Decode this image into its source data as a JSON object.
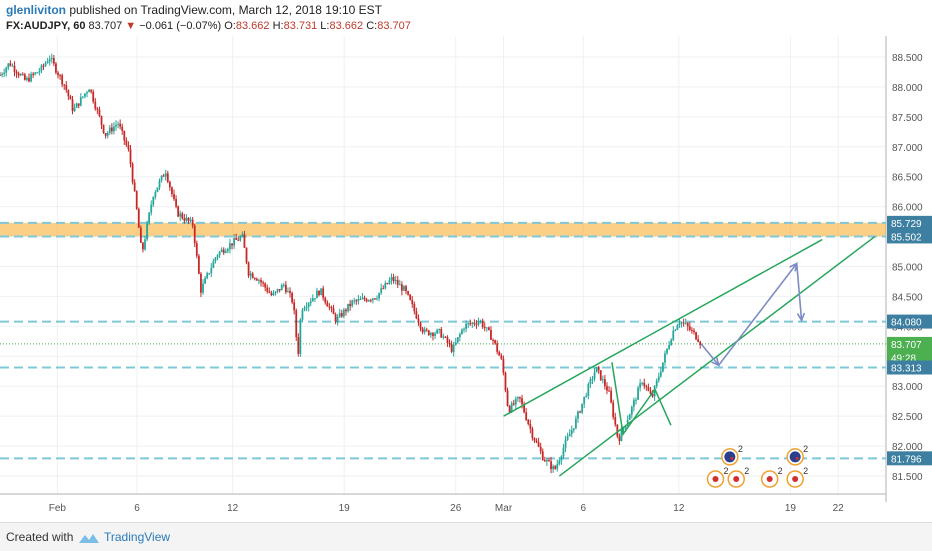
{
  "header": {
    "user": "glenliviton",
    "published": "published on TradingView.com, March 12, 2018 19:10 EST",
    "symbol": "FX:AUDJPY, 60",
    "last": "83.707",
    "arrow": "▼",
    "change": "−0.061 (−0.07%)",
    "o_label": "O:",
    "o": "83.662",
    "h_label": "H:",
    "h": "83.731",
    "l_label": "L:",
    "l": "83.662",
    "c_label": "C:",
    "c": "83.707"
  },
  "footer": {
    "created": "Created with",
    "brand": "TradingView"
  },
  "colors": {
    "support_line": "#7ec8d8",
    "zone": "#f9a825",
    "channel": "#26a65b",
    "arrow": "#7d8cc4",
    "candle_up": "#26a69a",
    "candle_down": "#c62828",
    "label_bg": "#3d7fa0",
    "last_price_bg": "#4caf50"
  },
  "chart_data": {
    "type": "line",
    "symbol": "FX:AUDJPY",
    "interval": "60",
    "y_ticks": [
      81.5,
      82.0,
      82.5,
      83.0,
      83.5,
      84.0,
      84.5,
      85.0,
      85.5,
      86.0,
      86.5,
      87.0,
      87.5,
      88.0,
      88.5
    ],
    "ylim": [
      81.2,
      88.85
    ],
    "x_ticks": [
      "Feb",
      "6",
      "12",
      "19",
      "26",
      "Mar",
      "6",
      "12",
      "19",
      "22"
    ],
    "x_tick_days": [
      0,
      5,
      11,
      18,
      25,
      28,
      33,
      39,
      46,
      49
    ],
    "xlim": [
      -3.6,
      52
    ],
    "price_path": [
      {
        "x": -3.6,
        "y": 88.2
      },
      {
        "x": -3.0,
        "y": 88.4
      },
      {
        "x": -2.0,
        "y": 88.1
      },
      {
        "x": -1.0,
        "y": 88.3
      },
      {
        "x": -0.5,
        "y": 88.5
      },
      {
        "x": 0.5,
        "y": 88.0
      },
      {
        "x": 1.0,
        "y": 87.6
      },
      {
        "x": 2.0,
        "y": 88.0
      },
      {
        "x": 3.0,
        "y": 87.2
      },
      {
        "x": 3.8,
        "y": 87.4
      },
      {
        "x": 4.5,
        "y": 86.9
      },
      {
        "x": 5.0,
        "y": 85.9
      },
      {
        "x": 5.3,
        "y": 85.2
      },
      {
        "x": 6.0,
        "y": 86.2
      },
      {
        "x": 6.8,
        "y": 86.6
      },
      {
        "x": 7.5,
        "y": 85.9
      },
      {
        "x": 8.5,
        "y": 85.7
      },
      {
        "x": 9.0,
        "y": 84.6
      },
      {
        "x": 10.0,
        "y": 85.2
      },
      {
        "x": 11.0,
        "y": 85.4
      },
      {
        "x": 11.6,
        "y": 85.5
      },
      {
        "x": 12.0,
        "y": 84.9
      },
      {
        "x": 12.6,
        "y": 84.8
      },
      {
        "x": 13.5,
        "y": 84.5
      },
      {
        "x": 14.2,
        "y": 84.7
      },
      {
        "x": 14.8,
        "y": 84.4
      },
      {
        "x": 15.1,
        "y": 83.5
      },
      {
        "x": 15.3,
        "y": 84.3
      },
      {
        "x": 16.5,
        "y": 84.6
      },
      {
        "x": 17.5,
        "y": 84.1
      },
      {
        "x": 18.5,
        "y": 84.4
      },
      {
        "x": 20.0,
        "y": 84.5
      },
      {
        "x": 21.0,
        "y": 84.8
      },
      {
        "x": 21.8,
        "y": 84.6
      },
      {
        "x": 22.5,
        "y": 84.2
      },
      {
        "x": 23.0,
        "y": 83.9
      },
      {
        "x": 24.0,
        "y": 83.9
      },
      {
        "x": 24.8,
        "y": 83.6
      },
      {
        "x": 25.5,
        "y": 84.0
      },
      {
        "x": 26.5,
        "y": 84.1
      },
      {
        "x": 27.3,
        "y": 83.8
      },
      {
        "x": 27.9,
        "y": 83.4
      },
      {
        "x": 28.3,
        "y": 82.6
      },
      {
        "x": 29.0,
        "y": 82.8
      },
      {
        "x": 29.8,
        "y": 82.2
      },
      {
        "x": 30.5,
        "y": 81.8
      },
      {
        "x": 31.2,
        "y": 81.6
      },
      {
        "x": 31.8,
        "y": 82.0
      },
      {
        "x": 32.5,
        "y": 82.4
      },
      {
        "x": 33.2,
        "y": 82.9
      },
      {
        "x": 33.8,
        "y": 83.3
      },
      {
        "x": 34.6,
        "y": 82.9
      },
      {
        "x": 35.2,
        "y": 82.1
      },
      {
        "x": 36.0,
        "y": 82.6
      },
      {
        "x": 36.7,
        "y": 83.1
      },
      {
        "x": 37.3,
        "y": 82.8
      },
      {
        "x": 38.0,
        "y": 83.4
      },
      {
        "x": 38.6,
        "y": 83.9
      },
      {
        "x": 39.0,
        "y": 84.1
      },
      {
        "x": 39.5,
        "y": 84.0
      },
      {
        "x": 40.2,
        "y": 83.8
      },
      {
        "x": 40.4,
        "y": 83.707
      }
    ],
    "support_levels": [
      85.729,
      85.502,
      84.08,
      83.313,
      81.796
    ],
    "resistance_zone": [
      85.502,
      85.729
    ],
    "last_price": 83.707,
    "axis_labels": [
      {
        "value": 85.729,
        "text": "85.729"
      },
      {
        "value": 85.502,
        "text": "85.502"
      },
      {
        "value": 84.08,
        "text": "84.080"
      },
      {
        "value": 83.707,
        "text": "83.707"
      },
      {
        "value": 83.48,
        "text": "49:28"
      },
      {
        "value": 83.313,
        "text": "83.313"
      },
      {
        "value": 81.796,
        "text": "81.796"
      }
    ],
    "channel_upper": [
      {
        "x": 28.0,
        "y": 82.5
      },
      {
        "x": 48.0,
        "y": 85.45
      }
    ],
    "channel_lower": [
      {
        "x": 31.5,
        "y": 81.5
      },
      {
        "x": 51.3,
        "y": 85.5
      }
    ],
    "channel_inner": [
      {
        "x": 34.8,
        "y": 83.4
      },
      {
        "x": 35.5,
        "y": 82.2
      },
      {
        "x": 37.5,
        "y": 82.95
      },
      {
        "x": 38.5,
        "y": 82.35
      }
    ],
    "projection": [
      {
        "x": 40.4,
        "y": 83.707
      },
      {
        "x": 41.5,
        "y": 83.35
      },
      {
        "x": 46.4,
        "y": 85.05
      },
      {
        "x": 46.7,
        "y": 84.1
      }
    ],
    "events": [
      {
        "x": 42.2,
        "y": 81.82,
        "label": "2"
      },
      {
        "x": 46.3,
        "y": 81.82,
        "label": "2"
      },
      {
        "x": 41.3,
        "y": 81.45,
        "label": "2"
      },
      {
        "x": 42.6,
        "y": 81.45,
        "label": "2"
      },
      {
        "x": 44.7,
        "y": 81.45,
        "label": "2"
      },
      {
        "x": 46.3,
        "y": 81.45,
        "label": "2"
      }
    ]
  }
}
